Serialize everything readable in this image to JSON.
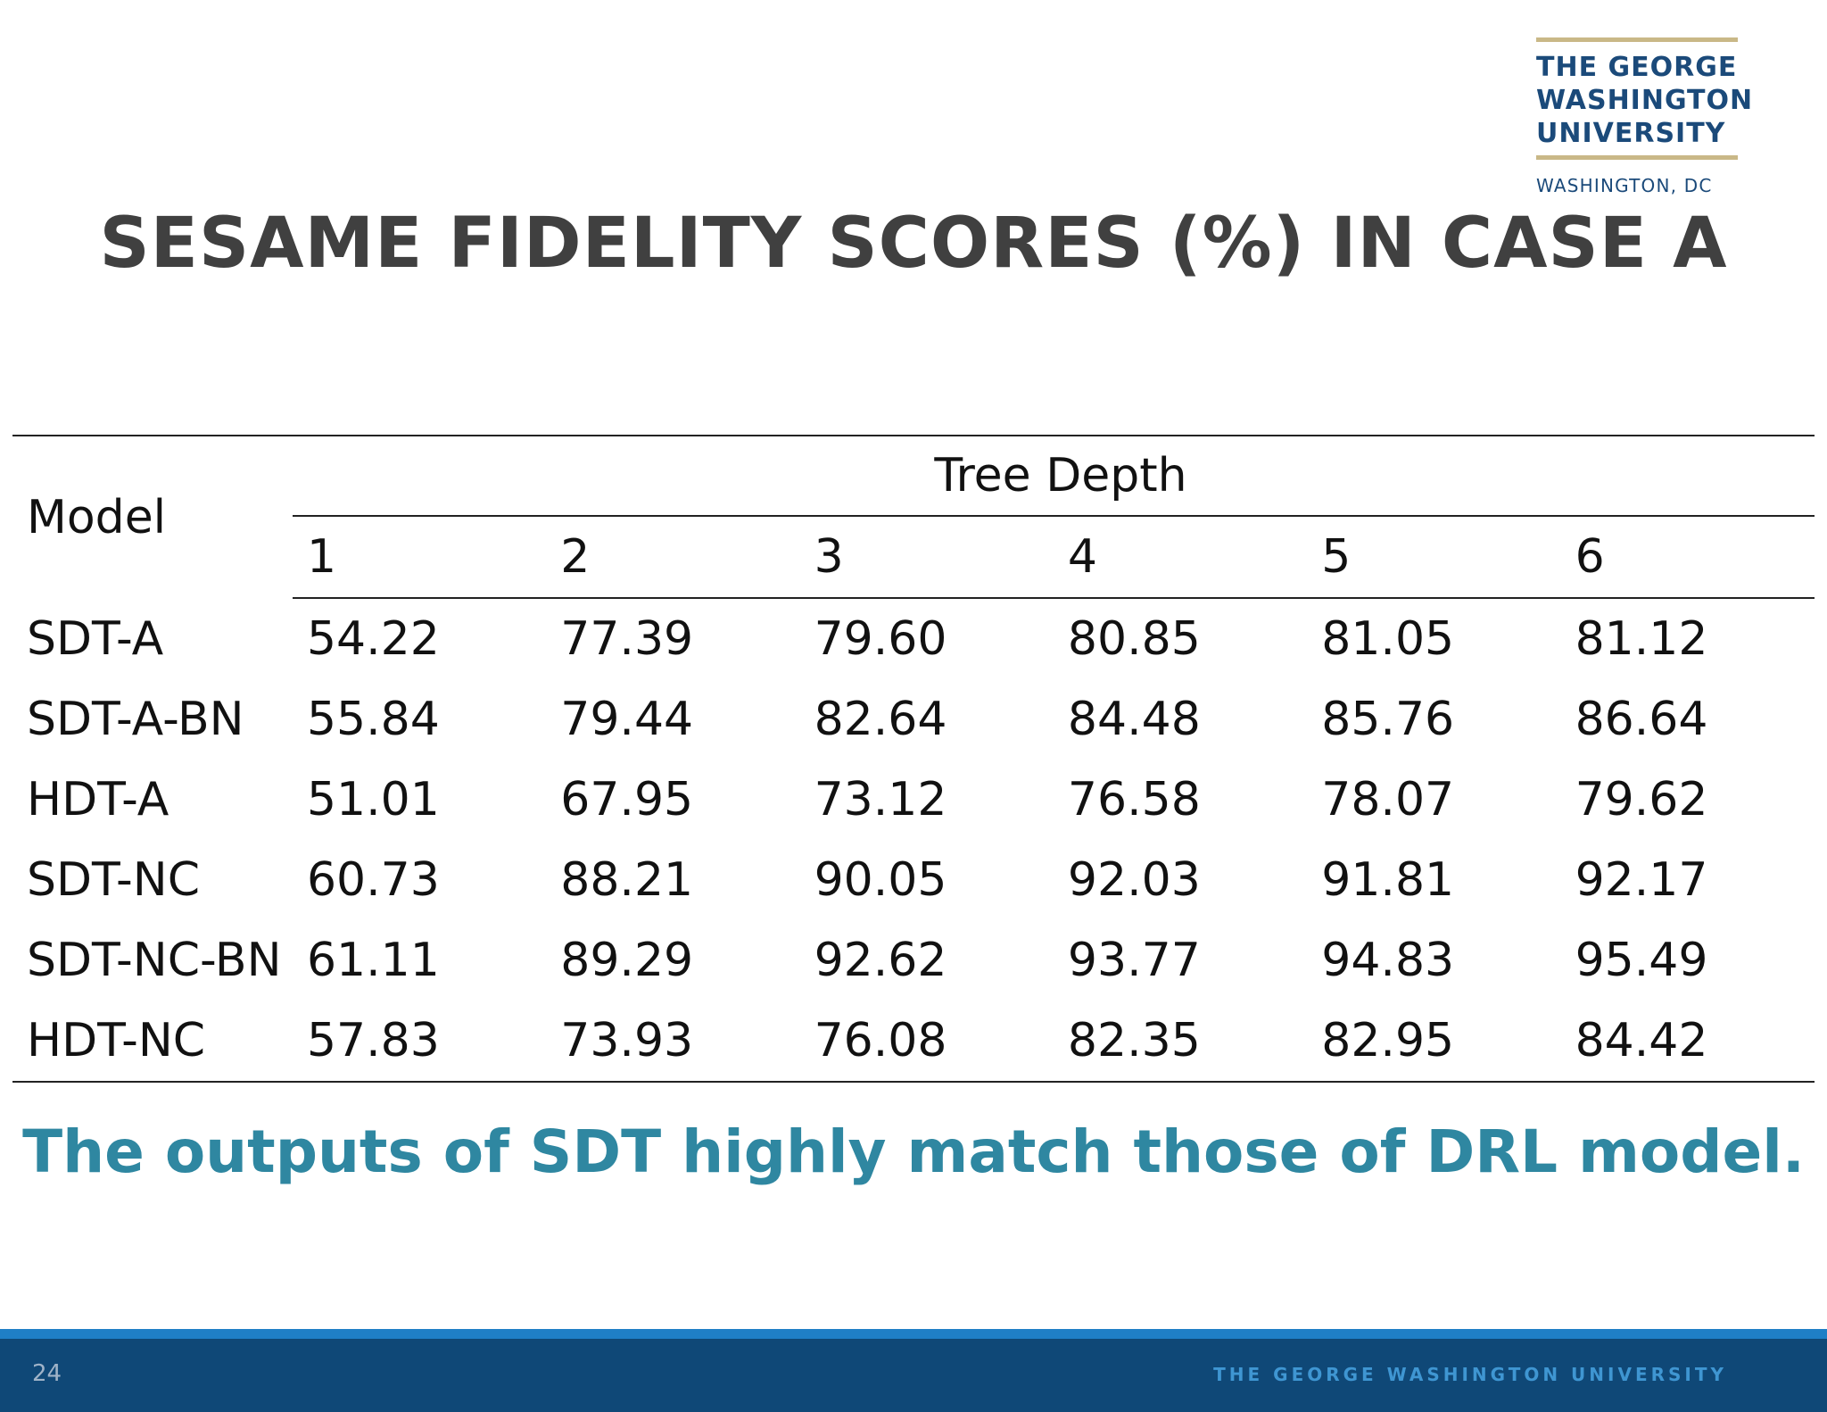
{
  "logo": {
    "line1": "THE GEORGE",
    "line2": "WASHINGTON",
    "line3": "UNIVERSITY",
    "city": "WASHINGTON, DC"
  },
  "slide": {
    "title": "SESAME FIDELITY SCORES (%) IN CASE A",
    "takeaway": "The outputs of SDT highly match those of DRL model.",
    "page_number": "24",
    "footer_text": "THE GEORGE WASHINGTON UNIVERSITY"
  },
  "table": {
    "model_header": "Model",
    "group_header": "Tree Depth",
    "depths": [
      "1",
      "2",
      "3",
      "4",
      "5",
      "6"
    ],
    "rows": [
      {
        "model": "SDT-A",
        "values": [
          "54.22",
          "77.39",
          "79.60",
          "80.85",
          "81.05",
          "81.12"
        ]
      },
      {
        "model": "SDT-A-BN",
        "values": [
          "55.84",
          "79.44",
          "82.64",
          "84.48",
          "85.76",
          "86.64"
        ]
      },
      {
        "model": "HDT-A",
        "values": [
          "51.01",
          "67.95",
          "73.12",
          "76.58",
          "78.07",
          "79.62"
        ]
      },
      {
        "model": "SDT-NC",
        "values": [
          "60.73",
          "88.21",
          "90.05",
          "92.03",
          "91.81",
          "92.17"
        ]
      },
      {
        "model": "SDT-NC-BN",
        "values": [
          "61.11",
          "89.29",
          "92.62",
          "93.77",
          "94.83",
          "95.49"
        ]
      },
      {
        "model": "HDT-NC",
        "values": [
          "57.83",
          "73.93",
          "76.08",
          "82.35",
          "82.95",
          "84.42"
        ]
      }
    ]
  },
  "colors": {
    "title": "#404040",
    "takeaway": "#2f87a1",
    "logo_navy": "#1b4a7a",
    "logo_gold": "#c9b887",
    "footer_bar": "#0f4877",
    "footer_accent": "#1f7fc6"
  }
}
